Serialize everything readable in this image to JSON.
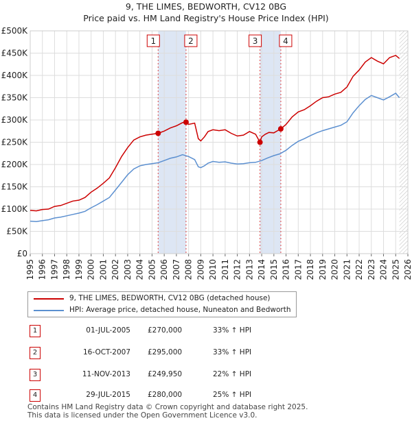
{
  "chart_data": {
    "type": "line",
    "title": "9, THE LIMES, BEDWORTH, CV12 0BG",
    "subtitle": "Price paid vs. HM Land Registry's House Price Index (HPI)",
    "xlim": [
      1995,
      2026
    ],
    "ylim": [
      0,
      500000
    ],
    "y_ticks": [
      0,
      50000,
      100000,
      150000,
      200000,
      250000,
      300000,
      350000,
      400000,
      450000,
      500000
    ],
    "y_tick_labels": [
      "£0",
      "£50K",
      "£100K",
      "£150K",
      "£200K",
      "£250K",
      "£300K",
      "£350K",
      "£400K",
      "£450K",
      "£500K"
    ],
    "x_ticks": [
      1995,
      1996,
      1997,
      1998,
      1999,
      2000,
      2001,
      2002,
      2003,
      2004,
      2005,
      2006,
      2007,
      2008,
      2009,
      2010,
      2011,
      2012,
      2013,
      2014,
      2015,
      2016,
      2017,
      2018,
      2019,
      2020,
      2021,
      2022,
      2023,
      2024,
      2025,
      2026
    ],
    "x_tick_labels": [
      "1995",
      "1996",
      "1997",
      "1998",
      "1999",
      "2000",
      "2001",
      "2002",
      "2003",
      "2004",
      "2005",
      "2006",
      "2007",
      "2008",
      "2009",
      "2010",
      "2011",
      "2012",
      "2013",
      "2014",
      "2015",
      "2016",
      "2017",
      "2018",
      "2019",
      "2020",
      "2021",
      "2022",
      "2023",
      "2024",
      "2025",
      "2026"
    ],
    "grid": true,
    "series": [
      {
        "name": "9, THE LIMES, BEDWORTH, CV12 0BG (detached house)",
        "color": "#cc0000",
        "x": [
          1995.0,
          1995.5,
          1996.0,
          1996.5,
          1997.0,
          1997.5,
          1998.0,
          1998.5,
          1999.0,
          1999.5,
          2000.0,
          2000.5,
          2001.0,
          2001.5,
          2002.0,
          2002.5,
          2003.0,
          2003.5,
          2004.0,
          2004.5,
          2005.0,
          2005.5,
          2006.0,
          2006.5,
          2007.0,
          2007.5,
          2007.79,
          2008.0,
          2008.5,
          2008.8,
          2009.0,
          2009.3,
          2009.6,
          2010.0,
          2010.5,
          2011.0,
          2011.5,
          2012.0,
          2012.5,
          2013.0,
          2013.5,
          2013.86,
          2014.0,
          2014.3,
          2014.6,
          2015.0,
          2015.3,
          2015.57,
          2016.0,
          2016.5,
          2017.0,
          2017.5,
          2018.0,
          2018.5,
          2019.0,
          2019.5,
          2020.0,
          2020.5,
          2021.0,
          2021.5,
          2022.0,
          2022.5,
          2023.0,
          2023.5,
          2024.0,
          2024.5,
          2025.0,
          2025.3
        ],
        "values": [
          97000,
          96000,
          99000,
          100000,
          106000,
          108000,
          113000,
          118000,
          120000,
          126000,
          138000,
          147000,
          158000,
          170000,
          193000,
          218000,
          238000,
          255000,
          262000,
          266000,
          268000,
          270000,
          275000,
          282000,
          287000,
          294000,
          295000,
          290000,
          293000,
          258000,
          253000,
          262000,
          274000,
          278000,
          276000,
          278000,
          270000,
          264000,
          266000,
          274000,
          268000,
          249950,
          262000,
          268000,
          272000,
          271000,
          276000,
          280000,
          290000,
          307000,
          318000,
          323000,
          332000,
          342000,
          350000,
          352000,
          358000,
          362000,
          374000,
          398000,
          412000,
          430000,
          440000,
          432000,
          426000,
          440000,
          445000,
          438000
        ]
      },
      {
        "name": "HPI: Average price, detached house, Nuneaton and Bedworth",
        "color": "#5b8fd0",
        "x": [
          1995.0,
          1995.5,
          1996.0,
          1996.5,
          1997.0,
          1997.5,
          1998.0,
          1998.5,
          1999.0,
          1999.5,
          2000.0,
          2000.5,
          2001.0,
          2001.5,
          2002.0,
          2002.5,
          2003.0,
          2003.5,
          2004.0,
          2004.5,
          2005.0,
          2005.5,
          2006.0,
          2006.5,
          2007.0,
          2007.5,
          2008.0,
          2008.5,
          2008.8,
          2009.0,
          2009.3,
          2009.6,
          2010.0,
          2010.5,
          2011.0,
          2011.5,
          2012.0,
          2012.5,
          2013.0,
          2013.5,
          2014.0,
          2014.5,
          2015.0,
          2015.5,
          2016.0,
          2016.5,
          2017.0,
          2017.5,
          2018.0,
          2018.5,
          2019.0,
          2019.5,
          2020.0,
          2020.5,
          2021.0,
          2021.5,
          2022.0,
          2022.5,
          2023.0,
          2023.5,
          2024.0,
          2024.5,
          2025.0,
          2025.3
        ],
        "values": [
          73000,
          72000,
          74000,
          76000,
          80000,
          82000,
          85000,
          88000,
          91000,
          95000,
          103000,
          110000,
          118000,
          126000,
          143000,
          160000,
          177000,
          190000,
          197000,
          200000,
          202000,
          204000,
          209000,
          214000,
          217000,
          222000,
          218000,
          211000,
          195000,
          193000,
          197000,
          203000,
          207000,
          205000,
          206000,
          203000,
          201000,
          202000,
          204000,
          205000,
          209000,
          215000,
          220000,
          224000,
          232000,
          243000,
          252000,
          258000,
          265000,
          271000,
          276000,
          280000,
          284000,
          288000,
          296000,
          316000,
          332000,
          346000,
          355000,
          350000,
          345000,
          352000,
          360000,
          350000
        ]
      }
    ],
    "sales": [
      {
        "n": "1",
        "x": 2005.5,
        "value": 270000
      },
      {
        "n": "2",
        "x": 2007.79,
        "value": 295000
      },
      {
        "n": "3",
        "x": 2013.86,
        "value": 249950
      },
      {
        "n": "4",
        "x": 2015.57,
        "value": 280000
      }
    ],
    "shaded_ranges": [
      [
        2005.5,
        2007.79
      ],
      [
        2013.86,
        2015.57
      ]
    ],
    "hatched_from": 2025.3
  },
  "legend": {
    "property": "9, THE LIMES, BEDWORTH, CV12 0BG (detached house)",
    "hpi": "HPI: Average price, detached house, Nuneaton and Bedworth"
  },
  "sales_table": [
    {
      "n": "1",
      "date": "01-JUL-2005",
      "price": "£270,000",
      "hpi": "33% ↑ HPI"
    },
    {
      "n": "2",
      "date": "16-OCT-2007",
      "price": "£295,000",
      "hpi": "33% ↑ HPI"
    },
    {
      "n": "3",
      "date": "11-NOV-2013",
      "price": "£249,950",
      "hpi": "22% ↑ HPI"
    },
    {
      "n": "4",
      "date": "29-JUL-2015",
      "price": "£280,000",
      "hpi": "25% ↑ HPI"
    }
  ],
  "footer": {
    "line1": "Contains HM Land Registry data © Crown copyright and database right 2025.",
    "line2": "This data is licensed under the Open Government Licence v3.0."
  }
}
